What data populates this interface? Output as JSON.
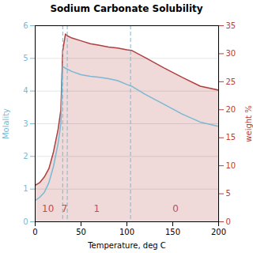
{
  "chart_data": {
    "type": "line",
    "title": "Sodium Carbonate Solubility",
    "x_label": "Temperature, deg C",
    "y_label": "Molality",
    "y2_label": "weight %",
    "xlim": [
      0,
      200
    ],
    "xticks": [
      0,
      50,
      100,
      150,
      200
    ],
    "ylim": [
      0,
      6
    ],
    "yticks": [
      0,
      1,
      2,
      3,
      4,
      5,
      6
    ],
    "y2lim": [
      0,
      35
    ],
    "y2ticks": [
      0,
      5,
      10,
      15,
      20,
      25,
      30,
      35
    ],
    "grid": true,
    "series": [
      {
        "type": "line",
        "color": "#7ab8d4",
        "x": [
          0,
          5,
          10,
          15,
          20,
          25,
          28,
          30,
          33,
          40,
          50,
          60,
          70,
          80,
          90,
          100,
          105,
          120,
          140,
          160,
          180,
          200
        ],
        "values": [
          0.65,
          0.75,
          0.9,
          1.2,
          1.7,
          2.4,
          3.0,
          4.75,
          4.7,
          4.6,
          4.5,
          4.45,
          4.42,
          4.38,
          4.32,
          4.2,
          4.15,
          3.9,
          3.6,
          3.3,
          3.05,
          2.92
        ]
      },
      {
        "type": "area",
        "axis": "y2",
        "color": "#b04040",
        "x": [
          0,
          5,
          10,
          15,
          20,
          25,
          28,
          30,
          33,
          35,
          40,
          50,
          60,
          70,
          80,
          90,
          100,
          105,
          120,
          140,
          160,
          180,
          200
        ],
        "values": [
          6.5,
          7.0,
          8.0,
          9.5,
          12.5,
          16.5,
          20.0,
          30.5,
          33.5,
          33.2,
          32.8,
          32.3,
          31.8,
          31.5,
          31.2,
          31.0,
          30.7,
          30.6,
          29.3,
          27.5,
          25.8,
          24.2,
          23.5
        ]
      }
    ],
    "vlines": {
      "x": [
        30,
        35,
        104
      ],
      "color": "#7ab8d4",
      "line_style": "dashed"
    },
    "annotations": [
      {
        "text": "10",
        "x": 14,
        "y": 0.3,
        "color": "#c0504d"
      },
      {
        "text": "7",
        "x": 32,
        "y": 0.3,
        "color": "#c0504d"
      },
      {
        "text": "1",
        "x": 67,
        "y": 0.3,
        "color": "#c0504d"
      },
      {
        "text": "0",
        "x": 153,
        "y": 0.3,
        "color": "#c0504d"
      }
    ]
  }
}
